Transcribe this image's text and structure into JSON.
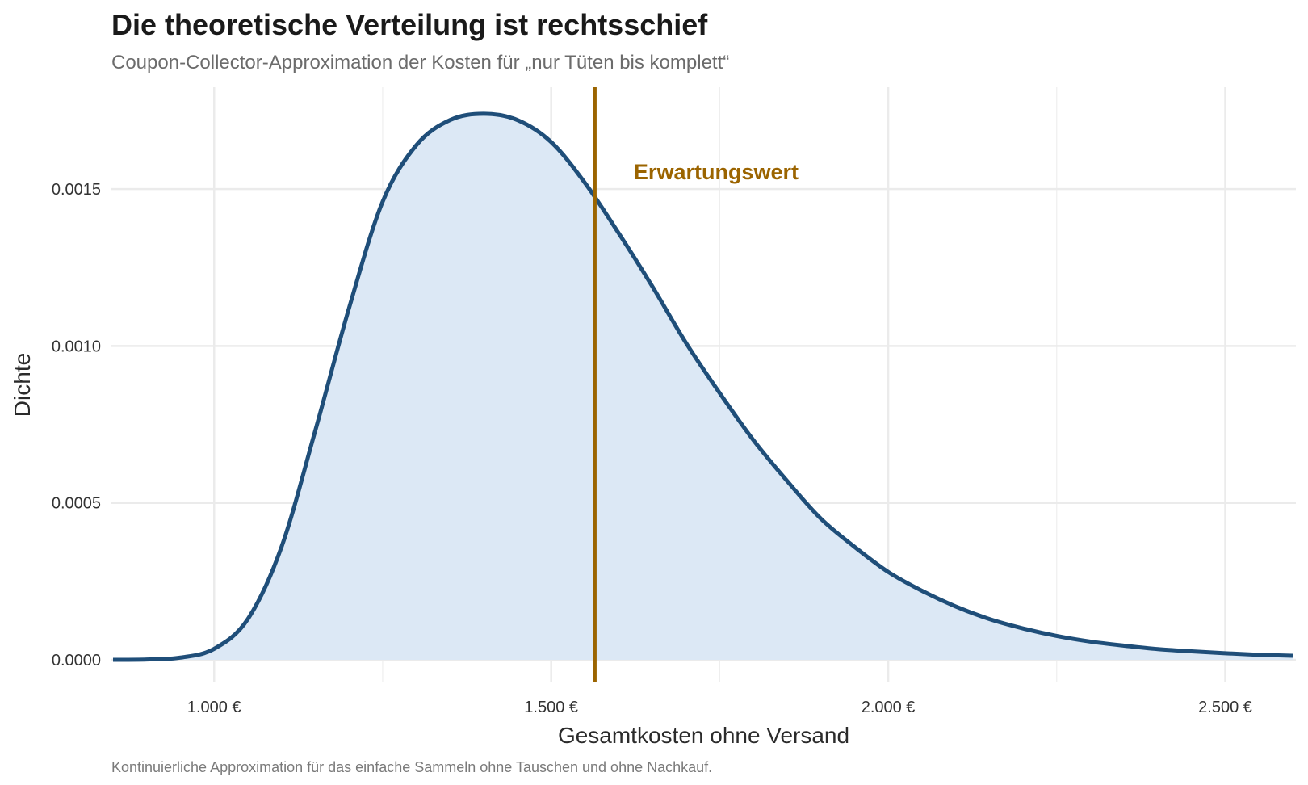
{
  "chart_data": {
    "type": "area",
    "title": "Die theoretische Verteilung ist rechtsschief",
    "subtitle": "Coupon-Collector-Approximation der Kosten für „nur Tüten bis komplett“",
    "caption": "Kontinuierliche Approximation für das einfache Sammeln ohne Tauschen und ohne Nachkauf.",
    "xlabel": "Gesamtkosten ohne Versand",
    "ylabel": "Dichte",
    "xlim": [
      850,
      2600
    ],
    "ylim": [
      0,
      0.00175
    ],
    "x_ticks": [
      1000,
      1500,
      2000,
      2500
    ],
    "x_tick_labels": [
      "1.000 €",
      "1.500 €",
      "2.000 €",
      "2.500 €"
    ],
    "y_ticks": [
      0,
      0.0005,
      0.001,
      0.0015
    ],
    "y_tick_labels": [
      "0.0000",
      "0.0005",
      "0.0010",
      "0.0015"
    ],
    "grid": true,
    "series": [
      {
        "x": [
          850,
          900,
          950,
          1000,
          1050,
          1100,
          1150,
          1200,
          1250,
          1300,
          1350,
          1400,
          1450,
          1500,
          1550,
          1600,
          1650,
          1700,
          1750,
          1800,
          1850,
          1900,
          1950,
          2000,
          2050,
          2100,
          2150,
          2200,
          2250,
          2300,
          2350,
          2400,
          2450,
          2500,
          2550,
          2600
        ],
        "y": [
          0.0,
          1e-06,
          7e-06,
          3.5e-05,
          0.00013,
          0.00036,
          0.00073,
          0.00112,
          0.00146,
          0.00164,
          0.00172,
          0.00174,
          0.00172,
          0.00165,
          0.00152,
          0.00136,
          0.00119,
          0.00101,
          0.00085,
          0.0007,
          0.00057,
          0.00045,
          0.00036,
          0.00028,
          0.00022,
          0.00017,
          0.00013,
          0.0001,
          7.6e-05,
          5.8e-05,
          4.5e-05,
          3.4e-05,
          2.7e-05,
          2.1e-05,
          1.6e-05,
          1.3e-05
        ]
      }
    ],
    "vline": {
      "x": 1565,
      "label": "Erwartungswert"
    },
    "colors": {
      "line": "#1f4e79",
      "fill": "#dce8f5",
      "vline": "#9b6400",
      "grid": "#ebebeb"
    }
  }
}
